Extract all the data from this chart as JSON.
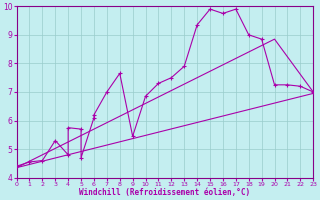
{
  "xlabel": "Windchill (Refroidissement éolien,°C)",
  "xlim": [
    0,
    23
  ],
  "ylim": [
    4,
    10
  ],
  "xticks": [
    0,
    1,
    2,
    3,
    4,
    5,
    6,
    7,
    8,
    9,
    10,
    11,
    12,
    13,
    14,
    15,
    16,
    17,
    18,
    19,
    20,
    21,
    22,
    23
  ],
  "yticks": [
    4,
    5,
    6,
    7,
    8,
    9,
    10
  ],
  "bg_color": "#c4eef0",
  "line_color": "#aa00aa",
  "grid_color": "#99cccc",
  "series_main": {
    "x": [
      0,
      1,
      2,
      3,
      4,
      4,
      5,
      5,
      6,
      6,
      7,
      8,
      9,
      10,
      11,
      12,
      13,
      14,
      15,
      16,
      17,
      18,
      19,
      20,
      21,
      22,
      23
    ],
    "y": [
      4.4,
      4.55,
      4.6,
      5.3,
      4.8,
      5.75,
      5.7,
      4.7,
      6.1,
      6.2,
      7.0,
      7.65,
      5.45,
      6.85,
      7.3,
      7.5,
      7.9,
      9.35,
      9.9,
      9.75,
      9.9,
      9.0,
      8.85,
      7.25,
      7.25,
      7.2,
      7.0
    ]
  },
  "series_linear": {
    "x": [
      0,
      23
    ],
    "y": [
      4.35,
      6.95
    ]
  },
  "series_trend": {
    "x": [
      0,
      20,
      23
    ],
    "y": [
      4.35,
      8.85,
      7.0
    ]
  }
}
